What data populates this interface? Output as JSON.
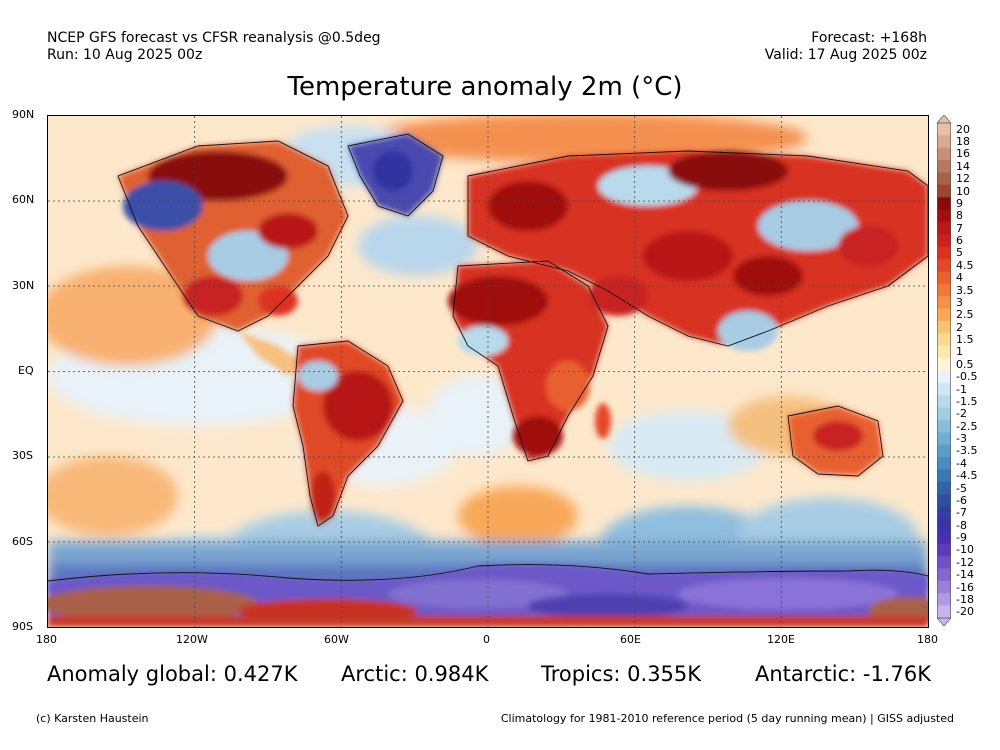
{
  "header": {
    "left_line1": "NCEP GFS forecast vs CFSR reanalysis @0.5deg",
    "left_line2": "Run: 10 Aug 2025 00z",
    "right_line1": "Forecast: +168h",
    "right_line2": "Valid: 17 Aug 2025 00z"
  },
  "title": "Temperature anomaly 2m (°C)",
  "axes": {
    "lat_ticks": [
      "90N",
      "60N",
      "30N",
      "EQ",
      "30S",
      "60S",
      "90S"
    ],
    "lon_ticks": [
      "180",
      "120W",
      "60W",
      "0",
      "60E",
      "120E",
      "180"
    ]
  },
  "colorbar": {
    "labels": [
      "20",
      "18",
      "16",
      "14",
      "12",
      "10",
      "9",
      "8",
      "7",
      "6",
      "5",
      "4.5",
      "4",
      "3.5",
      "3",
      "2.5",
      "2",
      "1.5",
      "1",
      "0.5",
      "-0.5",
      "-1",
      "-1.5",
      "-2",
      "-2.5",
      "-3",
      "-3.5",
      "-4",
      "-4.5",
      "-5",
      "-6",
      "-7",
      "-8",
      "-9",
      "-10",
      "-12",
      "-14",
      "-16",
      "-18",
      "-20"
    ],
    "colors": [
      "#e8c0a8",
      "#d8a890",
      "#c89078",
      "#b87860",
      "#a86048",
      "#984830",
      "#8a0a0a",
      "#a01010",
      "#b81818",
      "#cc2020",
      "#dc3020",
      "#e44828",
      "#ec6030",
      "#f07838",
      "#f49048",
      "#f8a858",
      "#fbc070",
      "#fdd890",
      "#fee8b0",
      "#fff4d8",
      "#e8f2f8",
      "#d0e6f2",
      "#b8daec",
      "#a0cce4",
      "#88bedc",
      "#70aed2",
      "#5c9ec8",
      "#4a8cbe",
      "#3a78b2",
      "#3064a6",
      "#2c509a",
      "#3040a0",
      "#3a34a8",
      "#4a2eb2",
      "#5c3cbc",
      "#7050c6",
      "#8468d0",
      "#9a80da",
      "#b09ae4",
      "#c8b4ee"
    ]
  },
  "stats": {
    "global": "Anomaly global: 0.427K",
    "arctic": "Arctic: 0.984K",
    "tropics": "Tropics: 0.355K",
    "antarctic": "Antarctic: -1.76K"
  },
  "footer": {
    "left": "(c) Karsten Haustein",
    "right": "Climatology for 1981-2010 reference period (5 day running mean) | GISS adjusted"
  }
}
